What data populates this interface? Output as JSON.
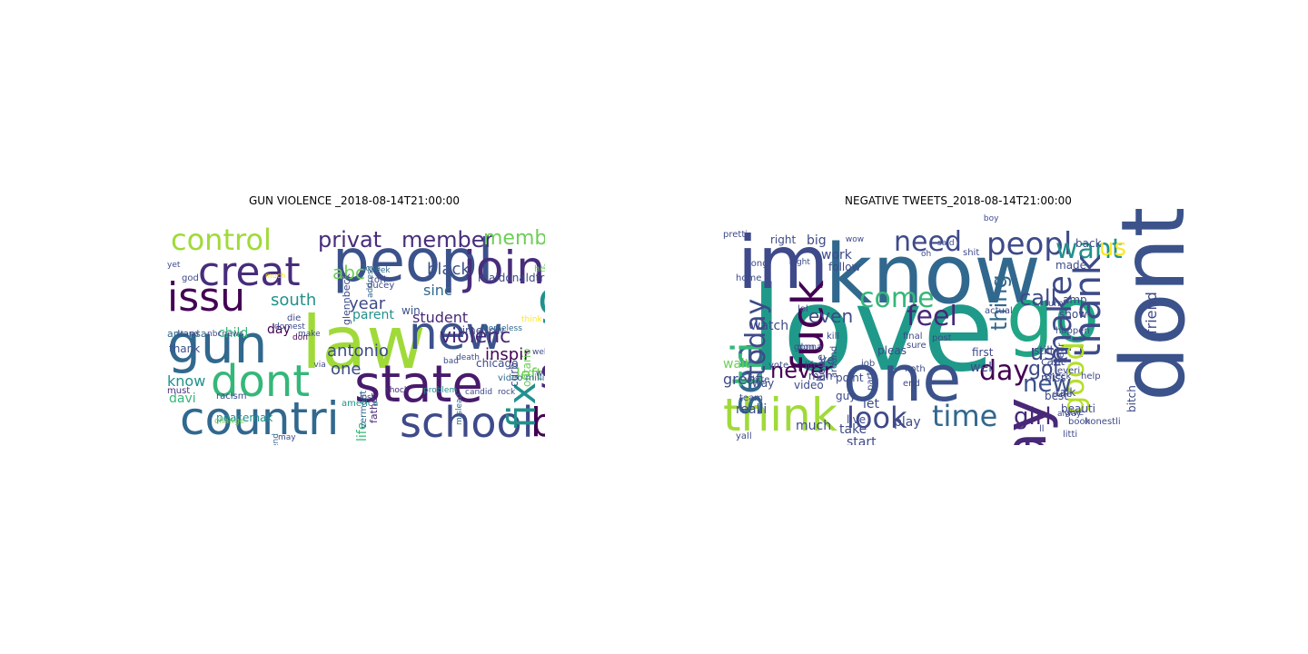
{
  "panels": [
    {
      "title": "GUN VIOLENCE _2018-08-14T21:00:00",
      "words": [
        {
          "t": "control",
          "c": "#a0da39"
        },
        {
          "t": "peopl",
          "c": "#3b528b"
        },
        {
          "t": "law",
          "c": "#a0da39"
        },
        {
          "t": "gun",
          "c": "#31688e"
        },
        {
          "t": "creat",
          "c": "#472d7b"
        },
        {
          "t": "issu",
          "c": "#440154"
        },
        {
          "t": "new",
          "c": "#3b528b"
        },
        {
          "t": "join",
          "c": "#472d7b"
        },
        {
          "t": "go",
          "c": "#21918c"
        },
        {
          "t": "say",
          "c": "#482878"
        },
        {
          "t": "state",
          "c": "#481a6c"
        },
        {
          "t": "dont",
          "c": "#35b779"
        },
        {
          "t": "countri",
          "c": "#31688e"
        },
        {
          "t": "school",
          "c": "#3e4a89"
        },
        {
          "t": "ban",
          "c": "#440154"
        },
        {
          "t": "fix",
          "c": "#21918c"
        },
        {
          "t": "privat",
          "c": "#472d7b"
        },
        {
          "t": "member",
          "c": "#472d7b"
        },
        {
          "t": "member bill",
          "c": "#6ece58"
        },
        {
          "t": "abc",
          "c": "#6ece58"
        },
        {
          "t": "black",
          "c": "#3b528b"
        },
        {
          "t": "sinc",
          "c": "#31688e"
        },
        {
          "t": "solut",
          "c": "#31688e"
        },
        {
          "t": "south",
          "c": "#21918c"
        },
        {
          "t": "year",
          "c": "#3e4a89"
        },
        {
          "t": "student",
          "c": "#482878"
        },
        {
          "t": "sorri",
          "c": "#6ece58"
        },
        {
          "t": "violenc",
          "c": "#482878"
        },
        {
          "t": "antonio",
          "c": "#3e4a89"
        },
        {
          "t": "inspir",
          "c": "#440154"
        },
        {
          "t": "left",
          "c": "#6ece58"
        },
        {
          "t": "want",
          "c": "#3b528b"
        },
        {
          "t": "one",
          "c": "#3e4a89"
        },
        {
          "t": "know",
          "c": "#21918c"
        },
        {
          "t": "child",
          "c": "#35b779"
        },
        {
          "t": "parent",
          "c": "#21918c"
        },
        {
          "t": "day",
          "c": "#440154"
        },
        {
          "t": "thank",
          "c": "#3b528b"
        },
        {
          "t": "davi",
          "c": "#35b779"
        },
        {
          "t": "life",
          "c": "#35b779"
        },
        {
          "t": "realdonaldtrump",
          "c": "#3e4a89"
        },
        {
          "t": "mpp introduc",
          "c": "#31688e"
        },
        {
          "t": "win",
          "c": "#3b528b"
        },
        {
          "t": "time low",
          "c": "#3e4a89"
        },
        {
          "t": "curb",
          "c": "#3e4a89"
        },
        {
          "t": "ontario",
          "c": "#6ece58"
        },
        {
          "t": "chicago",
          "c": "#3e4a89"
        },
        {
          "t": "murder",
          "c": "#3e4a89"
        },
        {
          "t": "point",
          "c": "#fde725"
        },
        {
          "t": "mislead",
          "c": "#31688e"
        },
        {
          "t": "glennbeck",
          "c": "#3e4a89"
        },
        {
          "t": "must",
          "c": "#472d7b"
        },
        {
          "t": "arkansa",
          "c": "#31688e"
        },
        {
          "t": "racism",
          "c": "#3e4a89"
        },
        {
          "t": "peacemak",
          "c": "#21918c"
        },
        {
          "t": "firearm",
          "c": "#6ece58"
        },
        {
          "t": "father",
          "c": "#482878"
        },
        {
          "t": "video million music",
          "c": "#31688e"
        },
        {
          "t": "heart",
          "c": "#6ece58"
        },
        {
          "t": "vermont",
          "c": "#31688e"
        },
        {
          "t": "america",
          "c": "#21918c"
        },
        {
          "t": "support",
          "c": "#6ece58"
        },
        {
          "t": "introduc",
          "c": "#3e4a89"
        },
        {
          "t": "death",
          "c": "#3e4a89"
        },
        {
          "t": "help",
          "c": "#6ece58"
        },
        {
          "t": "bad",
          "c": "#3e4a89"
        },
        {
          "t": "rock",
          "c": "#3e4a89"
        },
        {
          "t": "shock",
          "c": "#472d7b"
        },
        {
          "t": "problem",
          "c": "#21918c"
        },
        {
          "t": "work",
          "c": "#3e4a89"
        },
        {
          "t": "forget",
          "c": "#6ece58"
        },
        {
          "t": "address",
          "c": "#31688e"
        },
        {
          "t": "yet",
          "c": "#3e4a89"
        },
        {
          "t": "stand",
          "c": "#3e4a89"
        },
        {
          "t": "ducey",
          "c": "#3e4a89"
        },
        {
          "t": "tori",
          "c": "#3e4a89"
        },
        {
          "t": "week",
          "c": "#31688e"
        },
        {
          "t": "love",
          "c": "#31688e"
        },
        {
          "t": "god",
          "c": "#3e4a89"
        },
        {
          "t": "die",
          "c": "#3e4a89"
        },
        {
          "t": "make",
          "c": "#3e4a89"
        },
        {
          "t": "don",
          "c": "#440154"
        },
        {
          "t": "lost",
          "c": "#3e4a89"
        },
        {
          "t": "live",
          "c": "#6ece58"
        },
        {
          "t": "start",
          "c": "#6ece58"
        },
        {
          "t": "end",
          "c": "#31688e"
        },
        {
          "t": "may",
          "c": "#3e4a89"
        },
        {
          "t": "much",
          "c": "#fde725"
        },
        {
          "t": "american",
          "c": "#3e4a89"
        },
        {
          "t": "change",
          "c": "#6ece58"
        },
        {
          "t": "well",
          "c": "#3e4a89"
        },
        {
          "t": "candid",
          "c": "#3e4a89"
        },
        {
          "t": "think",
          "c": "#fde725"
        },
        {
          "t": "homeless",
          "c": "#31688e"
        },
        {
          "t": "nbcnews",
          "c": "#3e4a89"
        },
        {
          "t": "domest",
          "c": "#3e4a89"
        },
        {
          "t": "via",
          "c": "#3e4a89"
        }
      ]
    },
    {
      "title": "NEGATIVE TWEETS_2018-08-14T21:00:00",
      "words": [
        {
          "t": "love",
          "c": "#1f9a8a"
        },
        {
          "t": "know",
          "c": "#31688e"
        },
        {
          "t": "im",
          "c": "#3e4a89"
        },
        {
          "t": "dont",
          "c": "#3b528b"
        },
        {
          "t": "go",
          "c": "#21a585"
        },
        {
          "t": "one",
          "c": "#3b528b"
        },
        {
          "t": "say",
          "c": "#482878"
        },
        {
          "t": "think",
          "c": "#a0da39"
        },
        {
          "t": "fuck",
          "c": "#440154"
        },
        {
          "t": "see",
          "c": "#31688e"
        },
        {
          "t": "tri",
          "c": "#35b779"
        },
        {
          "t": "need",
          "c": "#3e4a89"
        },
        {
          "t": "peopl",
          "c": "#3e4a89"
        },
        {
          "t": "want",
          "c": "#21918c"
        },
        {
          "t": "us",
          "c": "#fde725"
        },
        {
          "t": "thank",
          "c": "#3e4a89"
        },
        {
          "t": "make",
          "c": "#3e4a89"
        },
        {
          "t": "good",
          "c": "#b5de2b"
        },
        {
          "t": "come",
          "c": "#35b779"
        },
        {
          "t": "feel",
          "c": "#482878"
        },
        {
          "t": "day",
          "c": "#440154"
        },
        {
          "t": "time",
          "c": "#31688e"
        },
        {
          "t": "look",
          "c": "#3e4a89"
        },
        {
          "t": "girl",
          "c": "#482878"
        },
        {
          "t": "new",
          "c": "#3b528b"
        },
        {
          "t": "call",
          "c": "#3e4a89"
        },
        {
          "t": "thing",
          "c": "#31688e"
        },
        {
          "t": "use",
          "c": "#3e4a89"
        },
        {
          "t": "got",
          "c": "#3e4a89"
        },
        {
          "t": "even",
          "c": "#3e4a89"
        },
        {
          "t": "today",
          "c": "#3e4a89"
        },
        {
          "t": "never",
          "c": "#440154"
        },
        {
          "t": "friend",
          "c": "#3e4a89"
        },
        {
          "t": "bitch",
          "c": "#3e4a89"
        },
        {
          "t": "right",
          "c": "#3e4a89"
        },
        {
          "t": "big",
          "c": "#3e4a89"
        },
        {
          "t": "work",
          "c": "#3e4a89"
        },
        {
          "t": "great",
          "c": "#3e4a89"
        },
        {
          "t": "watch",
          "c": "#3e4a89"
        },
        {
          "t": "way",
          "c": "#3e4a89"
        },
        {
          "t": "wait",
          "c": "#6ece58"
        },
        {
          "t": "video",
          "c": "#3e4a89"
        },
        {
          "t": "man",
          "c": "#3e4a89"
        },
        {
          "t": "realli",
          "c": "#3e4a89"
        },
        {
          "t": "much",
          "c": "#3e4a89"
        },
        {
          "t": "take",
          "c": "#3e4a89"
        },
        {
          "t": "start",
          "c": "#3e4a89"
        },
        {
          "t": "live",
          "c": "#3e4a89"
        },
        {
          "t": "let",
          "c": "#3e4a89"
        },
        {
          "t": "ye",
          "c": "#3e4a89"
        },
        {
          "t": "play",
          "c": "#3e4a89"
        },
        {
          "t": "well",
          "c": "#3e4a89"
        },
        {
          "t": "guy",
          "c": "#3e4a89"
        },
        {
          "t": "point",
          "c": "#3e4a89"
        },
        {
          "t": "pleas",
          "c": "#3e4a89"
        },
        {
          "t": "first",
          "c": "#3e4a89"
        },
        {
          "t": "still",
          "c": "#3e4a89"
        },
        {
          "t": "cant",
          "c": "#3e4a89"
        },
        {
          "t": "miss",
          "c": "#3e4a89"
        },
        {
          "t": "best",
          "c": "#3e4a89"
        },
        {
          "t": "talk",
          "c": "#3e4a89"
        },
        {
          "t": "beauti",
          "c": "#3e4a89"
        },
        {
          "t": "check",
          "c": "#3e4a89"
        },
        {
          "t": "help",
          "c": "#3e4a89"
        },
        {
          "t": "back",
          "c": "#3e4a89"
        },
        {
          "t": "made",
          "c": "#3e4a89"
        },
        {
          "t": "amp",
          "c": "#3e4a89"
        },
        {
          "t": "show",
          "c": "#3e4a89"
        },
        {
          "t": "follow",
          "c": "#3e4a89"
        },
        {
          "t": "lol",
          "c": "#3e4a89"
        },
        {
          "t": "don",
          "c": "#3e4a89"
        },
        {
          "t": "kill",
          "c": "#3e4a89"
        },
        {
          "t": "hope",
          "c": "#3e4a89"
        },
        {
          "t": "around",
          "c": "#3e4a89"
        },
        {
          "t": "noth",
          "c": "#3e4a89"
        },
        {
          "t": "sure",
          "c": "#3e4a89"
        },
        {
          "t": "final",
          "c": "#3e4a89"
        },
        {
          "t": "pretti",
          "c": "#3e4a89"
        },
        {
          "t": "long",
          "c": "#3e4a89"
        },
        {
          "t": "gonna",
          "c": "#3e4a89"
        },
        {
          "t": "team",
          "c": "#3e4a89"
        },
        {
          "t": "job",
          "c": "#3e4a89"
        },
        {
          "t": "parti",
          "c": "#3e4a89"
        },
        {
          "t": "alway",
          "c": "#3e4a89"
        },
        {
          "t": "litti",
          "c": "#3e4a89"
        },
        {
          "t": "book",
          "c": "#3e4a89"
        },
        {
          "t": "honestli",
          "c": "#3e4a89"
        },
        {
          "t": "cute",
          "c": "#3e4a89"
        },
        {
          "t": "happen",
          "c": "#3e4a89"
        },
        {
          "t": "year",
          "c": "#3e4a89"
        },
        {
          "t": "life",
          "c": "#3e4a89"
        },
        {
          "t": "everi",
          "c": "#3e4a89"
        },
        {
          "t": "give",
          "c": "#3e4a89"
        },
        {
          "t": "ll",
          "c": "#3e4a89"
        },
        {
          "t": "turn",
          "c": "#3e4a89"
        },
        {
          "t": "end",
          "c": "#3e4a89"
        },
        {
          "t": "home",
          "c": "#3e4a89"
        },
        {
          "t": "white",
          "c": "#3e4a89"
        },
        {
          "t": "post",
          "c": "#3e4a89"
        },
        {
          "t": "actual",
          "c": "#3e4a89"
        },
        {
          "t": "yall",
          "c": "#3e4a89"
        },
        {
          "t": "vote",
          "c": "#3e4a89"
        },
        {
          "t": "oh",
          "c": "#3e4a89"
        },
        {
          "t": "shit",
          "c": "#3e4a89"
        },
        {
          "t": "night",
          "c": "#3e4a89"
        },
        {
          "t": "wow",
          "c": "#3e4a89"
        },
        {
          "t": "boy",
          "c": "#3e4a89"
        },
        {
          "t": "said",
          "c": "#3e4a89"
        }
      ]
    }
  ]
}
